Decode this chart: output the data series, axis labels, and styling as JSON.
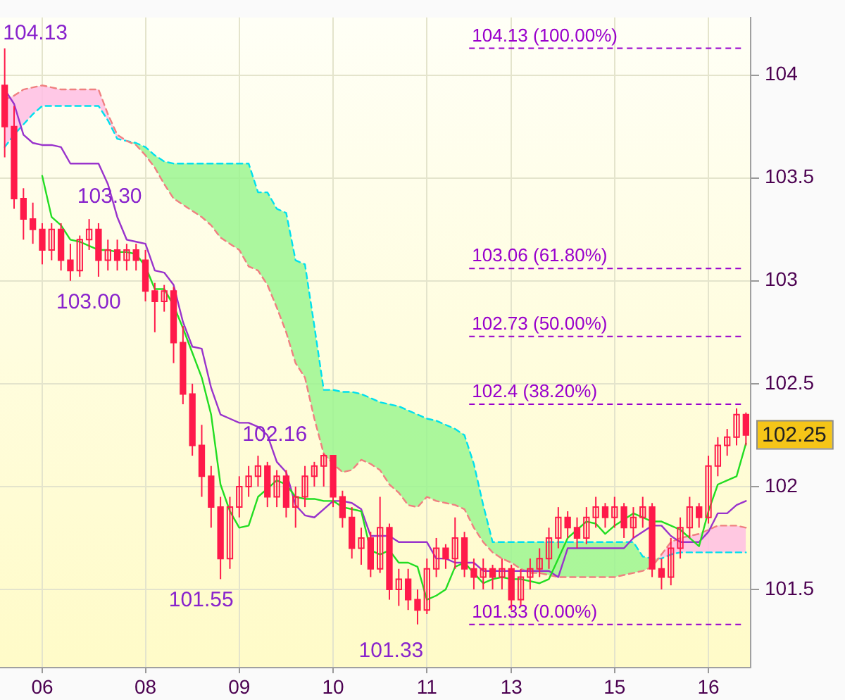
{
  "chart_data": {
    "type": "candlestick",
    "color": "#ff1a4a",
    "categories": [
      null,
      null,
      null,
      null,
      "06",
      null,
      null,
      null,
      null,
      null,
      null,
      null,
      null,
      null,
      null,
      "08",
      null,
      null,
      null,
      null,
      null,
      null,
      null,
      null,
      null,
      "09",
      null,
      null,
      null,
      null,
      null,
      null,
      null,
      null,
      null,
      "10",
      null,
      null,
      null,
      null,
      null,
      null,
      null,
      null,
      null,
      "11",
      null,
      null,
      null,
      null,
      null,
      null,
      null,
      null,
      "13",
      null,
      null,
      null,
      null,
      null,
      null,
      null,
      null,
      null,
      null,
      "15",
      null,
      null,
      null,
      null,
      null,
      null,
      null,
      null,
      null,
      "16",
      null,
      null,
      null,
      null
    ],
    "ohlc": [
      [
        103.95,
        104.13,
        103.6,
        103.75
      ],
      [
        103.75,
        103.85,
        103.35,
        103.4
      ],
      [
        103.4,
        103.45,
        103.2,
        103.3
      ],
      [
        103.3,
        103.38,
        103.18,
        103.25
      ],
      [
        103.25,
        103.28,
        103.08,
        103.15
      ],
      [
        103.15,
        103.28,
        103.1,
        103.25
      ],
      [
        103.25,
        103.28,
        103.05,
        103.1
      ],
      [
        103.1,
        103.18,
        103.0,
        103.05
      ],
      [
        103.05,
        103.22,
        103.02,
        103.2
      ],
      [
        103.2,
        103.3,
        103.15,
        103.25
      ],
      [
        103.25,
        103.28,
        103.02,
        103.1
      ],
      [
        103.1,
        103.2,
        103.05,
        103.15
      ],
      [
        103.15,
        103.2,
        103.05,
        103.1
      ],
      [
        103.1,
        103.18,
        103.05,
        103.15
      ],
      [
        103.15,
        103.18,
        103.05,
        103.1
      ],
      [
        103.1,
        103.15,
        102.9,
        102.95
      ],
      [
        102.95,
        102.99,
        102.75,
        102.9
      ],
      [
        102.9,
        102.98,
        102.85,
        102.95
      ],
      [
        102.95,
        102.97,
        102.6,
        102.7
      ],
      [
        102.7,
        102.78,
        102.4,
        102.45
      ],
      [
        102.45,
        102.5,
        102.15,
        102.2
      ],
      [
        102.2,
        102.3,
        101.95,
        102.05
      ],
      [
        102.05,
        102.1,
        101.8,
        101.9
      ],
      [
        101.9,
        101.95,
        101.55,
        101.65
      ],
      [
        101.65,
        101.95,
        101.6,
        101.9
      ],
      [
        101.9,
        102.05,
        101.85,
        102.0
      ],
      [
        102.0,
        102.1,
        101.95,
        102.05
      ],
      [
        102.05,
        102.15,
        102.0,
        102.1
      ],
      [
        102.1,
        102.12,
        101.9,
        101.95
      ],
      [
        101.95,
        102.08,
        101.9,
        102.05
      ],
      [
        102.05,
        102.08,
        101.85,
        101.9
      ],
      [
        101.9,
        102.0,
        101.8,
        101.95
      ],
      [
        101.95,
        102.1,
        101.9,
        102.05
      ],
      [
        102.05,
        102.12,
        102.0,
        102.1
      ],
      [
        102.1,
        102.16,
        102.0,
        102.15
      ],
      [
        102.15,
        102.15,
        101.9,
        101.95
      ],
      [
        101.95,
        101.98,
        101.8,
        101.85
      ],
      [
        101.85,
        101.9,
        101.65,
        101.7
      ],
      [
        101.7,
        101.8,
        101.62,
        101.75
      ],
      [
        101.75,
        101.78,
        101.56,
        101.6
      ],
      [
        101.6,
        101.95,
        101.58,
        101.8
      ],
      [
        101.8,
        101.82,
        101.45,
        101.5
      ],
      [
        101.5,
        101.6,
        101.42,
        101.55
      ],
      [
        101.55,
        101.6,
        101.4,
        101.45
      ],
      [
        101.45,
        101.5,
        101.33,
        101.4
      ],
      [
        101.4,
        101.65,
        101.38,
        101.6
      ],
      [
        101.6,
        101.75,
        101.56,
        101.7
      ],
      [
        101.7,
        101.72,
        101.6,
        101.65
      ],
      [
        101.65,
        101.85,
        101.6,
        101.75
      ],
      [
        101.75,
        101.78,
        101.56,
        101.6
      ],
      [
        101.6,
        101.65,
        101.5,
        101.56
      ],
      [
        101.56,
        101.65,
        101.5,
        101.6
      ],
      [
        101.6,
        101.62,
        101.5,
        101.56
      ],
      [
        101.56,
        101.65,
        101.5,
        101.6
      ],
      [
        101.6,
        101.62,
        101.4,
        101.45
      ],
      [
        101.45,
        101.6,
        101.42,
        101.56
      ],
      [
        101.56,
        101.65,
        101.5,
        101.6
      ],
      [
        101.6,
        101.7,
        101.56,
        101.65
      ],
      [
        101.65,
        101.8,
        101.6,
        101.75
      ],
      [
        101.75,
        101.9,
        101.7,
        101.85
      ],
      [
        101.85,
        101.88,
        101.75,
        101.8
      ],
      [
        101.8,
        101.85,
        101.7,
        101.75
      ],
      [
        101.75,
        101.9,
        101.72,
        101.85
      ],
      [
        101.85,
        101.95,
        101.8,
        101.9
      ],
      [
        101.9,
        101.92,
        101.8,
        101.85
      ],
      [
        101.85,
        101.95,
        101.8,
        101.9
      ],
      [
        101.9,
        101.92,
        101.75,
        101.8
      ],
      [
        101.8,
        101.9,
        101.75,
        101.85
      ],
      [
        101.85,
        101.95,
        101.8,
        101.9
      ],
      [
        101.9,
        101.92,
        101.56,
        101.6
      ],
      [
        101.6,
        101.65,
        101.5,
        101.56
      ],
      [
        101.56,
        101.75,
        101.52,
        101.7
      ],
      [
        101.7,
        101.85,
        101.65,
        101.8
      ],
      [
        101.8,
        101.95,
        101.75,
        101.9
      ],
      [
        101.9,
        101.92,
        101.8,
        101.85
      ],
      [
        101.85,
        102.15,
        101.82,
        102.1
      ],
      [
        102.1,
        102.24,
        102.05,
        102.2
      ],
      [
        102.2,
        102.28,
        102.15,
        102.24
      ],
      [
        102.24,
        102.38,
        102.2,
        102.35
      ],
      [
        102.35,
        102.36,
        102.2,
        102.25
      ]
    ],
    "series": [
      {
        "type": "line",
        "color": "#22dd22",
        "line_style": "solid",
        "values": [
          null,
          null,
          null,
          null,
          103.51,
          103.31,
          103.27,
          103.2,
          103.19,
          103.17,
          103.15,
          103.15,
          103.14,
          103.14,
          103.13,
          103.07,
          102.96,
          102.96,
          102.88,
          102.77,
          102.65,
          102.53,
          102.35,
          102.01,
          101.88,
          101.8,
          101.81,
          101.95,
          101.99,
          102.03,
          102.01,
          101.95,
          101.94,
          101.94,
          101.93,
          101.93,
          101.9,
          101.89,
          101.88,
          101.69,
          101.67,
          101.69,
          101.63,
          101.63,
          101.61,
          101.45,
          101.47,
          101.5,
          101.61,
          101.63,
          101.58,
          101.53,
          101.55,
          101.56,
          101.55,
          101.55,
          101.54,
          101.53,
          101.55,
          101.65,
          101.75,
          101.79,
          101.83,
          101.82,
          101.77,
          101.81,
          101.84,
          101.87,
          101.85,
          101.83,
          101.83,
          101.81,
          101.79,
          101.75,
          101.71,
          101.88,
          102.01,
          102.03,
          102.05,
          102.21
        ]
      },
      {
        "type": "line",
        "color": "#9933cc",
        "line_style": "solid",
        "values": [
          103.93,
          103.86,
          103.71,
          103.67,
          103.66,
          103.66,
          103.65,
          103.57,
          103.57,
          103.57,
          103.57,
          103.47,
          103.31,
          103.2,
          103.19,
          103.18,
          103.05,
          103.04,
          102.98,
          102.8,
          102.68,
          102.67,
          102.48,
          102.35,
          102.33,
          102.31,
          102.31,
          102.29,
          102.25,
          102.12,
          102.07,
          101.91,
          101.86,
          101.85,
          101.89,
          101.93,
          101.93,
          101.92,
          101.89,
          101.76,
          101.76,
          101.76,
          101.73,
          101.73,
          101.73,
          101.73,
          101.65,
          101.65,
          101.63,
          101.63,
          101.63,
          101.59,
          101.59,
          101.59,
          101.59,
          101.59,
          101.59,
          101.59,
          101.59,
          101.56,
          101.7,
          101.7,
          101.7,
          101.7,
          101.7,
          101.7,
          101.7,
          101.75,
          101.78,
          101.81,
          101.81,
          101.76,
          101.73,
          101.73,
          101.73,
          101.78,
          101.87,
          101.87,
          101.91,
          101.93
        ]
      },
      {
        "type": "line",
        "color": "#f08080",
        "line_style": "dashed",
        "values": [
          103.88,
          103.9,
          103.93,
          103.94,
          103.95,
          103.94,
          103.93,
          103.93,
          103.93,
          103.93,
          103.93,
          103.81,
          103.71,
          103.68,
          103.66,
          103.61,
          103.55,
          103.47,
          103.4,
          103.37,
          103.34,
          103.31,
          103.27,
          103.21,
          103.18,
          103.15,
          103.07,
          103.05,
          102.98,
          102.87,
          102.75,
          102.6,
          102.53,
          102.33,
          102.16,
          102.11,
          102.07,
          102.08,
          102.13,
          102.11,
          102.08,
          102.01,
          101.97,
          101.91,
          101.9,
          101.95,
          101.93,
          101.92,
          101.91,
          101.89,
          101.8,
          101.73,
          101.68,
          101.65,
          101.63,
          101.6,
          101.58,
          101.58,
          101.57,
          101.56,
          101.56,
          101.56,
          101.56,
          101.56,
          101.56,
          101.56,
          101.57,
          101.58,
          101.59,
          101.61,
          101.67,
          101.73,
          101.75,
          101.76,
          101.77,
          101.79,
          101.81,
          101.81,
          101.81,
          101.8
        ]
      },
      {
        "type": "line",
        "color": "#00e0ee",
        "line_style": "dashed",
        "values": [
          103.65,
          103.71,
          103.76,
          103.81,
          103.85,
          103.85,
          103.85,
          103.85,
          103.85,
          103.85,
          103.85,
          103.78,
          103.69,
          103.68,
          103.67,
          103.65,
          103.61,
          103.58,
          103.57,
          103.57,
          103.57,
          103.57,
          103.57,
          103.57,
          103.57,
          103.57,
          103.57,
          103.43,
          103.43,
          103.35,
          103.33,
          103.1,
          103.08,
          102.78,
          102.47,
          102.47,
          102.46,
          102.46,
          102.45,
          102.43,
          102.41,
          102.4,
          102.39,
          102.37,
          102.35,
          102.33,
          102.32,
          102.3,
          102.28,
          102.25,
          102.11,
          101.91,
          101.73,
          101.73,
          101.73,
          101.73,
          101.73,
          101.73,
          101.73,
          101.73,
          101.73,
          101.73,
          101.73,
          101.73,
          101.73,
          101.73,
          101.73,
          101.73,
          101.66,
          101.65,
          101.65,
          101.67,
          101.68,
          101.68,
          101.68,
          101.68,
          101.68,
          101.68,
          101.68,
          101.68
        ]
      }
    ],
    "ylim": [
      101.12,
      104.28
    ],
    "yticks": [
      101.5,
      102,
      102.5,
      103,
      103.5,
      104
    ],
    "grid": true,
    "legend": false,
    "marker": "none",
    "ref_lines": [
      {
        "axis": "y",
        "value": 104.13,
        "label": "104.13 (100.00%)",
        "color": "#9900cc",
        "line_style": "dashed"
      },
      {
        "axis": "y",
        "value": 103.06,
        "label": "103.06 (61.80%)",
        "color": "#9900cc",
        "line_style": "dashed"
      },
      {
        "axis": "y",
        "value": 102.73,
        "label": "102.73 (50.00%)",
        "color": "#9900cc",
        "line_style": "dashed"
      },
      {
        "axis": "y",
        "value": 102.4,
        "label": "102.4 (38.20%)",
        "color": "#9900cc",
        "line_style": "dashed"
      },
      {
        "axis": "y",
        "value": 101.33,
        "label": "101.33 (0.00%)",
        "color": "#9900cc",
        "line_style": "dashed"
      }
    ],
    "annotations": [
      "104.13",
      "103.30",
      "103.00",
      {
        "text": "102.16",
        "y": 102.16
      },
      "101.55",
      "101.33",
      "102.25"
    ]
  }
}
